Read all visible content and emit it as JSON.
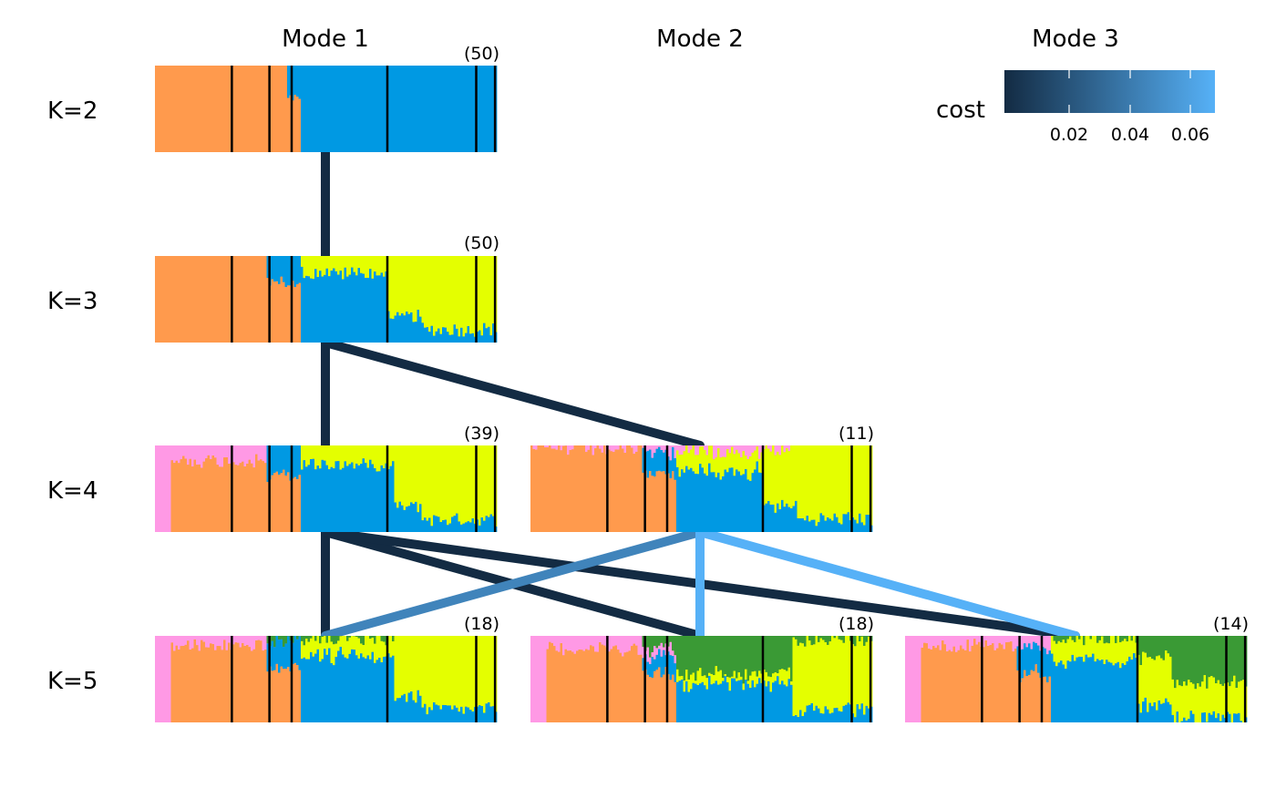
{
  "mode_labels": [
    "Mode 1",
    "Mode 2",
    "Mode 3"
  ],
  "k_labels": [
    "K=2",
    "K=3",
    "K=4",
    "K=5"
  ],
  "cluster_colors": {
    "orange": "#FF9A4D",
    "blue": "#0099E3",
    "yellow": "#E4FF00",
    "pink": "#FF99E5",
    "green": "#3A9A35"
  },
  "legend": {
    "title": "cost",
    "ticks": [
      "0.02",
      "0.04",
      "0.06"
    ],
    "colors": [
      "#132B43",
      "#56B1F7"
    ]
  },
  "chart_data": {
    "type": "structure-plot-modes",
    "panels": [
      {
        "id": "K2-M1",
        "k": 2,
        "mode": 1,
        "count": "(50)"
      },
      {
        "id": "K3-M1",
        "k": 3,
        "mode": 1,
        "count": "(50)"
      },
      {
        "id": "K4-M1",
        "k": 4,
        "mode": 1,
        "count": "(39)"
      },
      {
        "id": "K4-M2",
        "k": 4,
        "mode": 2,
        "count": "(11)"
      },
      {
        "id": "K5-M1",
        "k": 5,
        "mode": 1,
        "count": "(18)"
      },
      {
        "id": "K5-M2",
        "k": 5,
        "mode": 2,
        "count": "(18)"
      },
      {
        "id": "K5-M3",
        "k": 5,
        "mode": 3,
        "count": "(14)"
      }
    ],
    "edges": [
      {
        "from": "K2-M1",
        "to": "K3-M1",
        "cost": 0.0
      },
      {
        "from": "K3-M1",
        "to": "K4-M1",
        "cost": 0.0
      },
      {
        "from": "K3-M1",
        "to": "K4-M2",
        "cost": 0.0
      },
      {
        "from": "K4-M1",
        "to": "K5-M1",
        "cost": 0.0
      },
      {
        "from": "K4-M1",
        "to": "K5-M2",
        "cost": 0.0
      },
      {
        "from": "K4-M1",
        "to": "K5-M3",
        "cost": 0.0
      },
      {
        "from": "K4-M2",
        "to": "K5-M1",
        "cost": 0.05
      },
      {
        "from": "K4-M2",
        "to": "K5-M2",
        "cost": 0.075
      },
      {
        "from": "K4-M2",
        "to": "K5-M3",
        "cost": 0.075
      }
    ],
    "cost_range": [
      0.0,
      0.075
    ]
  }
}
